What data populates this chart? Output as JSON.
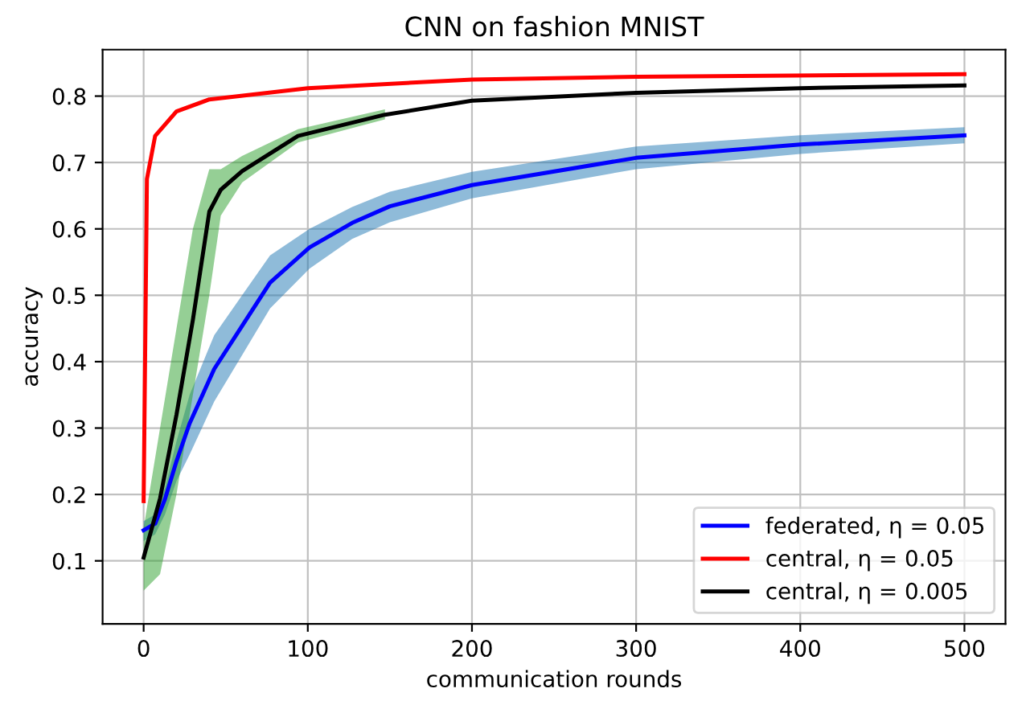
{
  "chart_data": {
    "type": "line",
    "title": "CNN on fashion MNIST",
    "xlabel": "communication rounds",
    "ylabel": "accuracy",
    "series": [
      {
        "name": "federated, η = 0.05",
        "color": "#0000ff",
        "x": [
          0,
          7,
          13,
          20,
          28,
          43,
          60,
          77,
          101,
          127,
          150,
          200,
          300,
          400,
          500
        ],
        "values": [
          0.146,
          0.156,
          0.193,
          0.25,
          0.307,
          0.389,
          0.454,
          0.519,
          0.572,
          0.609,
          0.634,
          0.666,
          0.707,
          0.727,
          0.741
        ],
        "lower": [
          0.13,
          0.14,
          0.17,
          0.22,
          0.26,
          0.34,
          0.41,
          0.48,
          0.54,
          0.585,
          0.61,
          0.646,
          0.69,
          0.713,
          0.729
        ],
        "upper": [
          0.16,
          0.17,
          0.21,
          0.28,
          0.35,
          0.44,
          0.5,
          0.56,
          0.6,
          0.633,
          0.656,
          0.686,
          0.724,
          0.741,
          0.753
        ]
      },
      {
        "name": "central, η = 0.05",
        "color": "#ff0000",
        "x": [
          0,
          2,
          7,
          20,
          40,
          100,
          200,
          300,
          500
        ],
        "values": [
          0.19,
          0.675,
          0.74,
          0.777,
          0.795,
          0.812,
          0.825,
          0.829,
          0.833
        ]
      },
      {
        "name": "central, η = 0.005",
        "color": "#000000",
        "x": [
          0,
          10,
          20,
          30,
          40,
          47,
          60,
          94,
          147,
          200,
          300,
          400,
          500
        ],
        "values": [
          0.105,
          0.194,
          0.32,
          0.463,
          0.626,
          0.659,
          0.687,
          0.74,
          0.772,
          0.793,
          0.805,
          0.812,
          0.816
        ],
        "lower": [
          0.055,
          0.08,
          0.2,
          0.35,
          0.5,
          0.62,
          0.67,
          0.73,
          0.765,
          null,
          null,
          null,
          null
        ],
        "upper": [
          0.15,
          0.3,
          0.45,
          0.6,
          0.69,
          0.69,
          0.71,
          0.75,
          0.78,
          null,
          null,
          null,
          null
        ]
      }
    ],
    "xlim": [
      -25,
      525
    ],
    "xticks": [
      0,
      100,
      200,
      300,
      400,
      500
    ],
    "ylim": [
      0.005,
      0.87
    ],
    "yticks": [
      0.1,
      0.2,
      0.3,
      0.4,
      0.5,
      0.6,
      0.7,
      0.8
    ],
    "grid": true,
    "legend": "lower right"
  }
}
